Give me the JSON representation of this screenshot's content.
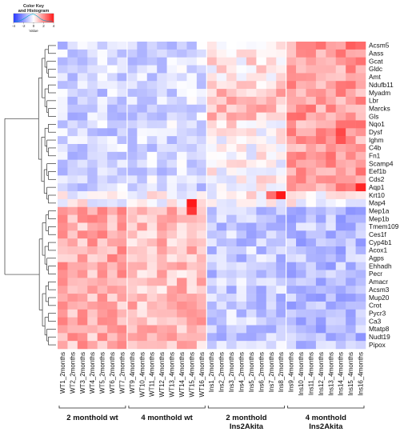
{
  "chart_data": {
    "type": "heatmap",
    "color_key": {
      "title": "Color Key and Histogram",
      "ticks": [
        "-4",
        "-2",
        "0",
        "2",
        "4"
      ],
      "xlabel": "Value",
      "range": [
        -4,
        4
      ],
      "colors": {
        "low": "#2b3cff",
        "mid": "#ffffff",
        "high": "#ff2020"
      }
    },
    "genes": [
      "Acsm5",
      "Aass",
      "Gcat",
      "Gldc",
      "Amt",
      "Ndufb11",
      "Myadm",
      "Lbr",
      "Marcks",
      "Gls",
      "Nqo1",
      "Dysf",
      "Ighm",
      "C4b",
      "Fn1",
      "Scamp4",
      "Eef1b",
      "Cds2",
      "Aqp1",
      "Krt10",
      "Map4",
      "Mep1a",
      "Mep1b",
      "Tmem109",
      "Ces1f",
      "Cyp4b1",
      "Acox1",
      "Agps",
      "Ehhadh",
      "Pecr",
      "Amacr",
      "Acsm3",
      "Mup20",
      "Crot",
      "Pycr3",
      "Ca3",
      "Mtatp8",
      "Nudt19",
      "Pipox"
    ],
    "samples": [
      "WT1_2months",
      "WT2_2months",
      "WT3_2months",
      "WT4_2months",
      "WT5_2months",
      "WT6_2months",
      "WT7_2months",
      "WT9_4months",
      "WT10_4months",
      "WT11_4months",
      "WT12_4months",
      "WT13_4months",
      "WT14_4months",
      "WT15_4months",
      "WT16_4months",
      "Ins1_2months",
      "Ins2_2months",
      "Ins3_2months",
      "Ins4_2months",
      "Ins5_2months",
      "Ins6_2months",
      "Ins7_2months",
      "Ins8_2months",
      "Ins9_4months",
      "Ins10_4months",
      "Ins11_4months",
      "Ins12_4months",
      "Ins13_4months",
      "Ins14_4months",
      "Ins15_4months",
      "Ins16_4months"
    ],
    "groups": [
      {
        "label": "2 monthold wt",
        "start": 0,
        "end": 6
      },
      {
        "label": "4 monthold wt",
        "start": 7,
        "end": 14
      },
      {
        "label": "2 monthold Ins2Akita",
        "start": 15,
        "end": 22
      },
      {
        "label": "4 monthold Ins2Akita",
        "start": 23,
        "end": 30
      }
    ],
    "up_in_akita_genes": [
      "Acsm5",
      "Aass",
      "Gcat",
      "Gldc",
      "Amt",
      "Ndufb11",
      "Myadm",
      "Lbr",
      "Marcks",
      "Gls",
      "Nqo1",
      "Dysf",
      "Ighm",
      "C4b",
      "Fn1",
      "Scamp4",
      "Eef1b",
      "Cds2",
      "Aqp1"
    ],
    "up_in_wt_genes": [
      "Mep1a",
      "Mep1b",
      "Tmem109",
      "Ces1f",
      "Cyp4b1",
      "Acox1",
      "Agps",
      "Ehhadh",
      "Pecr",
      "Amacr",
      "Acsm3",
      "Mup20",
      "Crot",
      "Pycr3",
      "Ca3",
      "Mtatp8",
      "Nudt19",
      "Pipox"
    ],
    "highlights": [
      {
        "gene": "Krt10",
        "sample": "Ins8_2months",
        "value": 4
      },
      {
        "gene": "Krt10",
        "sample": "Ins7_2months",
        "value": 2.5
      },
      {
        "gene": "Map4",
        "sample": "WT15_4months",
        "value": 4
      },
      {
        "gene": "Mep1a",
        "sample": "WT15_4months",
        "value": 3.5
      },
      {
        "gene": "Aqp1",
        "sample": "Ins16_4months",
        "value": 3.8
      },
      {
        "gene": "Dysf",
        "sample": "Ins14_4months",
        "value": 3.2
      },
      {
        "gene": "Ighm",
        "sample": "Ins14_4months",
        "value": 3.0
      },
      {
        "gene": "Acsm5",
        "sample": "Ins15_4months",
        "value": 2.8
      },
      {
        "gene": "Acsm5",
        "sample": "Ins16_4months",
        "value": 2.6
      }
    ],
    "value_range": [
      -4,
      4
    ]
  }
}
